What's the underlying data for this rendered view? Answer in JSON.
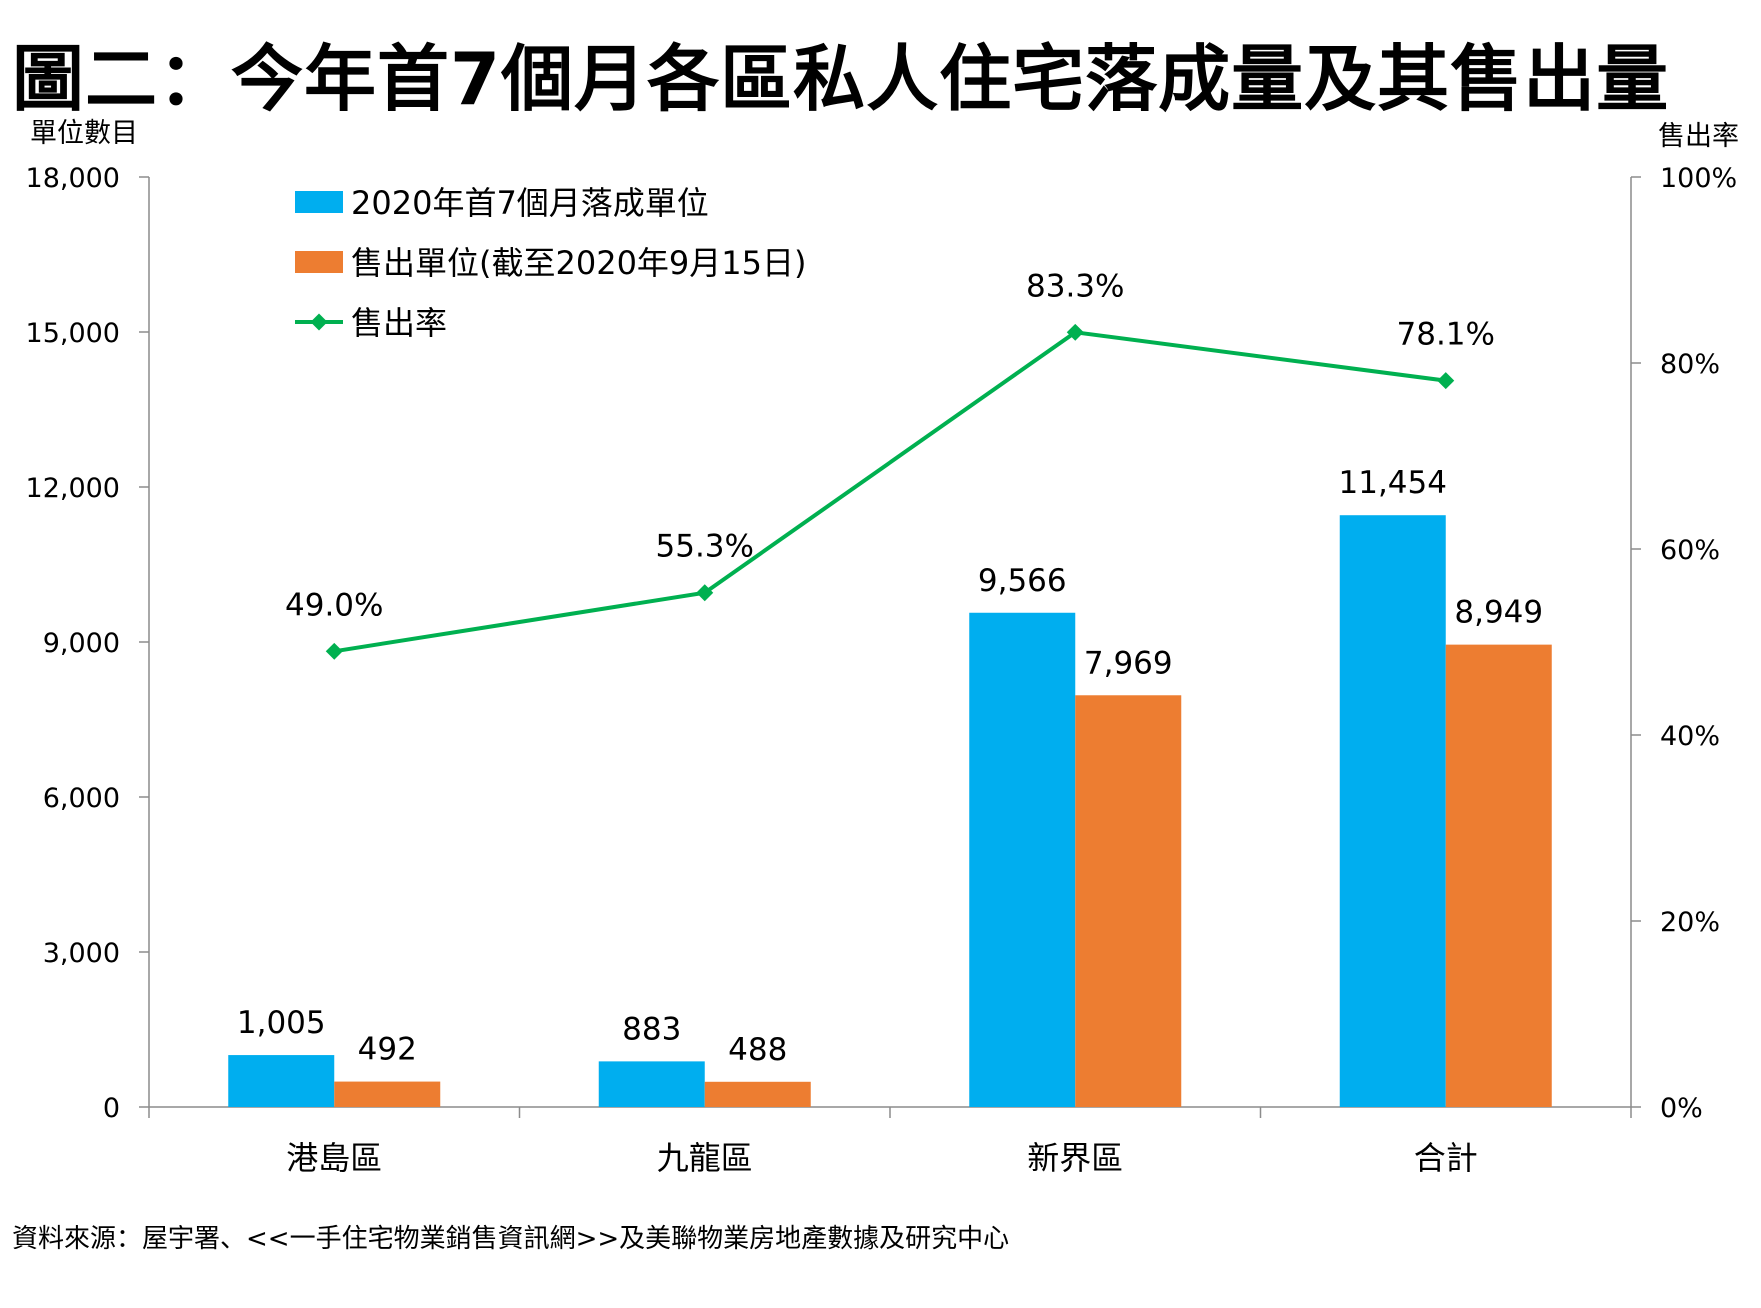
{
  "chart_data": {
    "type": "bar+line",
    "title": "圖二：今年首7個月各區私人住宅落成量及其售出量",
    "ylabel_left": "單位數目",
    "ylabel_right": "售出率",
    "ylim_left": [
      0,
      18000
    ],
    "yticks_left": [
      0,
      3000,
      6000,
      9000,
      12000,
      15000,
      18000
    ],
    "ytick_labels_left": [
      "0",
      "3,000",
      "6,000",
      "9,000",
      "12,000",
      "15,000",
      "18,000"
    ],
    "ylim_right": [
      0,
      100
    ],
    "yticks_right": [
      0,
      20,
      40,
      60,
      80,
      100
    ],
    "ytick_labels_right": [
      "0%",
      "20%",
      "40%",
      "60%",
      "80%",
      "100%"
    ],
    "categories": [
      "港島區",
      "九龍區",
      "新界區",
      "合計"
    ],
    "series": [
      {
        "name": "2020年首7個月落成單位",
        "kind": "bar",
        "axis": "left",
        "color": "#00aeef",
        "values": [
          1005,
          883,
          9566,
          11454
        ],
        "labels": [
          "1,005",
          "883",
          "9,566",
          "11,454"
        ]
      },
      {
        "name": "售出單位(截至2020年9月15日)",
        "kind": "bar",
        "axis": "left",
        "color": "#ed7d31",
        "values": [
          492,
          488,
          7969,
          8949
        ],
        "labels": [
          "492",
          "488",
          "7,969",
          "8,949"
        ]
      },
      {
        "name": "售出率",
        "kind": "line",
        "axis": "right",
        "color": "#00b050",
        "values": [
          49.0,
          55.3,
          83.3,
          78.1
        ],
        "labels": [
          "49.0%",
          "55.3%",
          "83.3%",
          "78.1%"
        ]
      }
    ],
    "legend_position": "top-left",
    "grid": false
  },
  "footer": {
    "source": "資料來源：屋宇署、<<一手住宅物業銷售資訊網>>及美聯物業房地產數據及研究中心"
  }
}
